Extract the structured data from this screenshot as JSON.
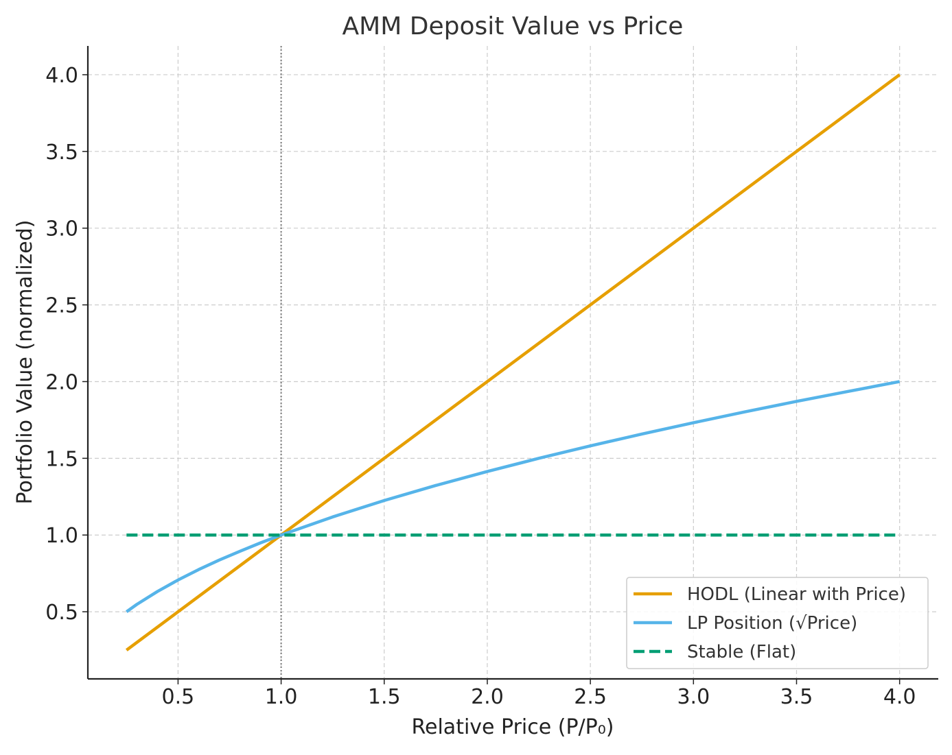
{
  "chart_data": {
    "type": "line",
    "title": "AMM Deposit Value vs Price",
    "xlabel": "Relative Price (P/P₀)",
    "ylabel": "Portfolio Value (normalized)",
    "xlim": [
      0.0625,
      4.1875
    ],
    "ylim": [
      0.0625,
      4.1875
    ],
    "xticks": [
      0.5,
      1.0,
      1.5,
      2.0,
      2.5,
      3.0,
      3.5,
      4.0
    ],
    "yticks": [
      0.5,
      1.0,
      1.5,
      2.0,
      2.5,
      3.0,
      3.5,
      4.0
    ],
    "tick_format_decimals": 1,
    "grid": true,
    "reference_line": {
      "axis": "x",
      "value": 1.0,
      "style": "dotted",
      "color": "#777777"
    },
    "legend_position": "lower-right",
    "series": [
      {
        "name": "HODL (Linear with Price)",
        "color": "#E69F00",
        "dash": "solid",
        "x": [
          0.25,
          0.5,
          1.0,
          1.5,
          2.0,
          2.5,
          3.0,
          3.5,
          4.0
        ],
        "y": [
          0.25,
          0.5,
          1.0,
          1.5,
          2.0,
          2.5,
          3.0,
          3.5,
          4.0
        ]
      },
      {
        "name": "LP Position (√Price)",
        "color": "#56B4E9",
        "dash": "solid",
        "x": [
          0.25,
          0.3,
          0.4,
          0.5,
          0.6,
          0.7,
          0.8,
          0.9,
          1.0,
          1.25,
          1.5,
          1.75,
          2.0,
          2.25,
          2.5,
          2.75,
          3.0,
          3.25,
          3.5,
          3.75,
          4.0
        ],
        "y": [
          0.5,
          0.548,
          0.632,
          0.707,
          0.775,
          0.837,
          0.894,
          0.949,
          1.0,
          1.118,
          1.225,
          1.323,
          1.414,
          1.5,
          1.581,
          1.658,
          1.732,
          1.803,
          1.871,
          1.936,
          2.0
        ]
      },
      {
        "name": "Stable (Flat)",
        "color": "#009E73",
        "dash": "dashed",
        "x": [
          0.25,
          4.0
        ],
        "y": [
          1.0,
          1.0
        ]
      }
    ]
  }
}
